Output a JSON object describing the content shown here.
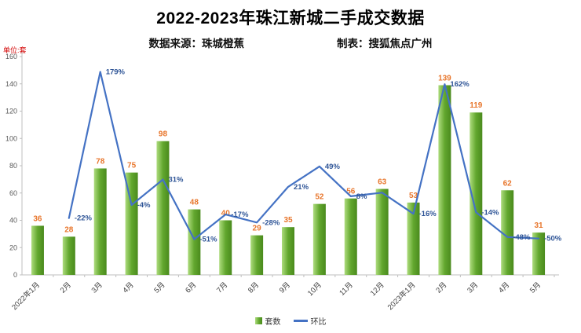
{
  "chart_data": {
    "type": "combo-bar-line",
    "title": "2022-2023年珠江新城二手成交数据",
    "source_label": "数据来源：珠城橙蕉",
    "producer_label": "制表：搜狐焦点广州",
    "unit_label": "单位:套",
    "categories": [
      "2022年1月",
      "2月",
      "3月",
      "4月",
      "5月",
      "6月",
      "7月",
      "8月",
      "9月",
      "10月",
      "11月",
      "12月",
      "2023年1月",
      "2月",
      "3月",
      "4月",
      "5月"
    ],
    "series": [
      {
        "name": "套数",
        "type": "bar",
        "values": [
          36,
          28,
          78,
          75,
          98,
          48,
          40,
          29,
          35,
          52,
          56,
          63,
          53,
          139,
          119,
          62,
          31
        ]
      },
      {
        "name": "环比",
        "type": "line",
        "values": [
          null,
          -22,
          179,
          -4,
          31,
          -51,
          -17,
          -28,
          21,
          49,
          8,
          13,
          -16,
          162,
          -14,
          -48,
          -50
        ],
        "labels": [
          null,
          "-22%",
          "179%",
          "-4%",
          "31%",
          "-51%",
          "-17%",
          "-28%",
          "21%",
          "49%",
          "8%",
          null,
          "-16%",
          "162%",
          "-14%",
          "-48%",
          "-50%"
        ]
      }
    ],
    "y_axis": {
      "min": 0,
      "max": 160,
      "step": 20,
      "ticks": [
        "0",
        "20",
        "40",
        "60",
        "80",
        "100",
        "120",
        "140",
        "160"
      ]
    },
    "secondary_axis": {
      "min_pct": -100,
      "max_pct": 200
    },
    "bar_gradient": [
      "#aedc7e",
      "#62a72e",
      "#4a8a1d"
    ],
    "line_color": "#4472c4",
    "bar_label_color": "#e8762c",
    "pct_label_color": "#2f5597",
    "legend": [
      {
        "label": "套数",
        "type": "bar"
      },
      {
        "label": "环比",
        "type": "line"
      }
    ],
    "grid": false,
    "legend_position": "bottom-center"
  }
}
